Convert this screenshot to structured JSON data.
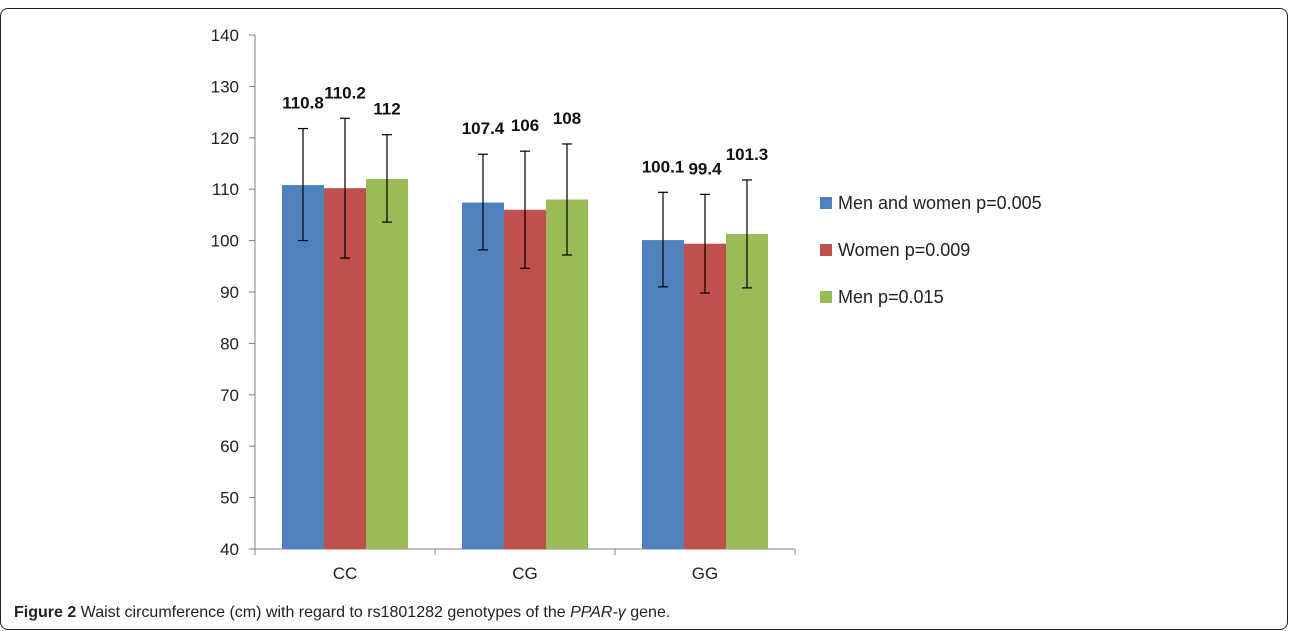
{
  "caption": {
    "figure_label": "Figure 2",
    "text_before_gene": " Waist circumference (cm) with regard to rs1801282 genotypes of the ",
    "gene": "PPAR-γ",
    "text_after_gene": " gene."
  },
  "chart_data": {
    "type": "bar",
    "categories": [
      "CC",
      "CG",
      "GG"
    ],
    "ylim": [
      40,
      140
    ],
    "yticks": [
      40,
      50,
      60,
      70,
      80,
      90,
      100,
      110,
      120,
      130,
      140
    ],
    "grid": false,
    "legend_position": "right",
    "error_bars": true,
    "series": [
      {
        "name": "Men and women p=0.005",
        "color": "#4F81BD",
        "values": [
          110.8,
          107.4,
          100.1
        ],
        "labels": [
          "110.8",
          "107.4",
          "100.1"
        ],
        "error_low": [
          100.0,
          98.2,
          91.0
        ],
        "error_high": [
          121.8,
          116.8,
          109.4
        ]
      },
      {
        "name": "Women p=0.009",
        "color": "#C0504D",
        "values": [
          110.2,
          106,
          99.4
        ],
        "labels": [
          "110.2",
          "106",
          "99.4"
        ],
        "error_low": [
          96.6,
          94.6,
          89.8
        ],
        "error_high": [
          123.8,
          117.4,
          109.0
        ]
      },
      {
        "name": "Men p=0.015",
        "color": "#9BBB59",
        "values": [
          112,
          108,
          101.3
        ],
        "labels": [
          "112",
          "108",
          "101.3"
        ],
        "error_low": [
          103.6,
          97.2,
          90.8
        ],
        "error_high": [
          120.6,
          118.8,
          111.8
        ]
      }
    ]
  }
}
